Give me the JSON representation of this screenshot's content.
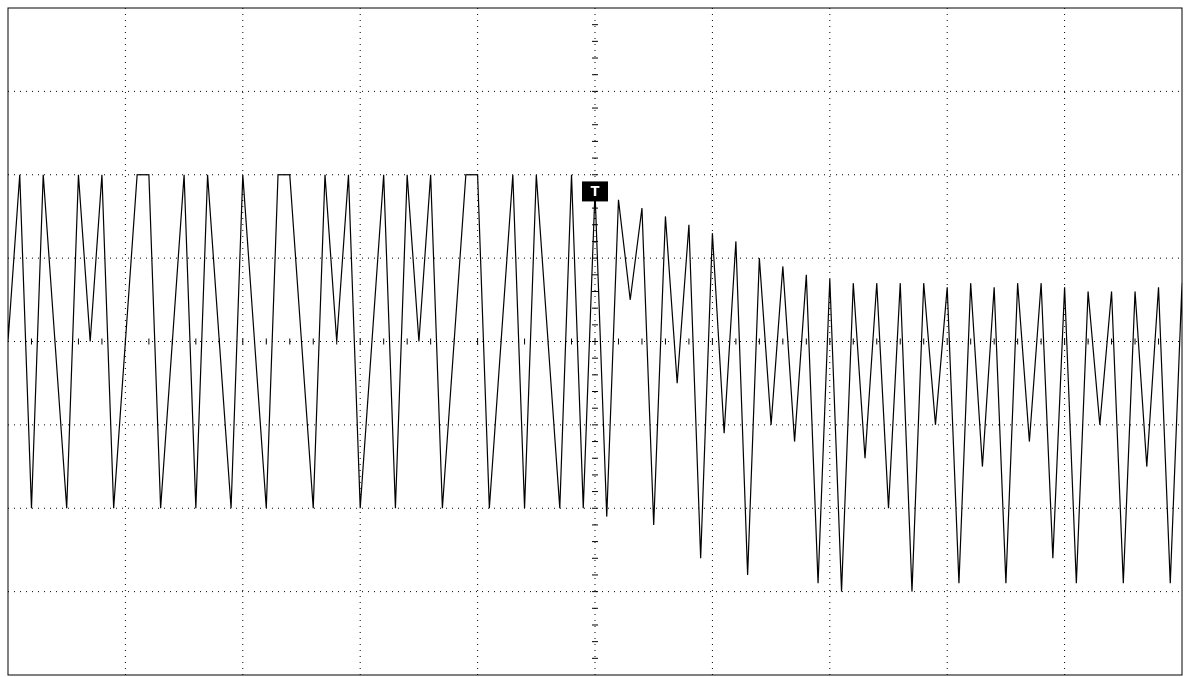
{
  "chart_data": {
    "type": "line",
    "x": [
      -5,
      -4.9,
      -4.8,
      -4.7,
      -4.6,
      -4.5,
      -4.4,
      -4.3,
      -4.2,
      -4.1,
      -4,
      -3.9,
      -3.8,
      -3.7,
      -3.6,
      -3.5,
      -3.4,
      -3.3,
      -3.2,
      -3.1,
      -3,
      -2.9,
      -2.8,
      -2.7,
      -2.6,
      -2.5,
      -2.4,
      -2.3,
      -2.2,
      -2.1,
      -2,
      -1.9,
      -1.8,
      -1.7,
      -1.6,
      -1.5,
      -1.4,
      -1.3,
      -1.2,
      -1.1,
      -1,
      -0.9,
      -0.8,
      -0.7,
      -0.6,
      -0.5,
      -0.4,
      -0.3,
      -0.2,
      -0.1,
      0,
      0.1,
      0.2,
      0.3,
      0.4,
      0.5,
      0.6,
      0.7,
      0.8,
      0.9,
      1,
      1.1,
      1.2,
      1.3,
      1.4,
      1.5,
      1.6,
      1.7,
      1.8,
      1.9,
      2,
      2.1,
      2.2,
      2.3,
      2.4,
      2.5,
      2.6,
      2.7,
      2.8,
      2.9,
      3,
      3.1,
      3.2,
      3.3,
      3.4,
      3.5,
      3.6,
      3.7,
      3.8,
      3.9,
      4,
      4.1,
      4.2,
      4.3,
      4.4,
      4.5,
      4.6,
      4.7,
      4.8,
      4.9,
      5
    ],
    "series": [
      {
        "color": "#000000",
        "values": [
          0,
          2,
          -2,
          2,
          0,
          -2,
          2,
          0,
          2,
          -2,
          0,
          2,
          2,
          -2,
          0,
          2,
          -2,
          2,
          0,
          -2,
          2,
          0,
          -2,
          2,
          2,
          0,
          -2,
          2,
          0,
          2,
          -2,
          0,
          2,
          -2,
          2,
          0,
          2,
          -2,
          0,
          2,
          2,
          -2,
          0,
          2,
          -2,
          2,
          0,
          -2,
          2,
          -2,
          1.8,
          -2.1,
          1.7,
          0.5,
          1.6,
          -2.2,
          1.5,
          -0.5,
          1.4,
          -2.6,
          1.3,
          -1.1,
          1.2,
          -2.8,
          1.0,
          -1.0,
          0.9,
          -1.2,
          0.8,
          -2.9,
          0.75,
          -3.0,
          0.7,
          -1.4,
          0.7,
          -2.0,
          0.7,
          -3.0,
          0.7,
          -1.0,
          0.65,
          -2.9,
          0.7,
          -1.5,
          0.65,
          -2.9,
          0.7,
          -1.2,
          0.7,
          -2.6,
          0.65,
          -2.9,
          0.6,
          -1.0,
          0.6,
          -2.9,
          0.6,
          -1.5,
          0.65,
          -2.9,
          0.7
        ]
      }
    ],
    "xlim": [
      -5,
      5
    ],
    "ylim": [
      -4,
      4
    ],
    "xticks": [
      -5,
      -4,
      -3,
      -2,
      -1,
      0,
      1,
      2,
      3,
      4,
      5
    ],
    "yticks": [
      -4,
      -3,
      -2,
      -1,
      0,
      1,
      2,
      3,
      4
    ],
    "grid": true,
    "trigger_label": "T"
  }
}
